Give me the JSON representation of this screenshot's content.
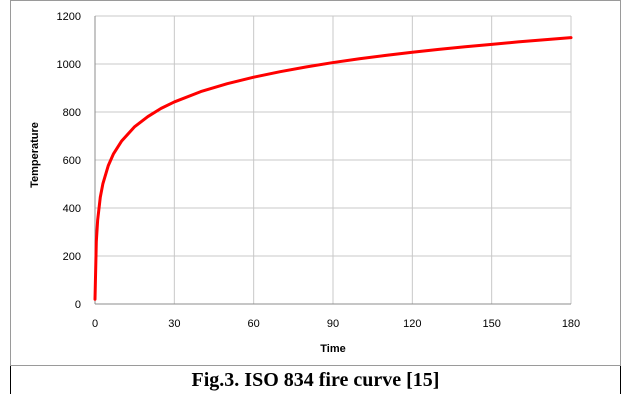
{
  "caption": "Fig.3. ISO 834 fire curve [15]",
  "chart_data": {
    "type": "line",
    "xlabel": "Time",
    "ylabel": "Temperature",
    "xlim": [
      0,
      180
    ],
    "ylim": [
      0,
      1200
    ],
    "x_ticks": [
      "0",
      "30",
      "60",
      "90",
      "120",
      "150",
      "180"
    ],
    "y_ticks": [
      "0",
      "200",
      "400",
      "600",
      "800",
      "1000",
      "1200"
    ],
    "grid": true,
    "legend": "none",
    "series": [
      {
        "color": "#ff0000",
        "x": [
          0,
          0.5,
          1,
          2,
          3,
          5,
          7,
          10,
          15,
          20,
          25,
          30,
          40,
          50,
          60,
          70,
          80,
          90,
          100,
          110,
          120,
          130,
          140,
          150,
          160,
          170,
          180
        ],
        "y": [
          20,
          261,
          349,
          445,
          502,
          576,
          626,
          678,
          739,
          781,
          815,
          842,
          885,
          918,
          945,
          968,
          988,
          1006,
          1022,
          1036,
          1049,
          1061,
          1072,
          1082,
          1092,
          1101,
          1110
        ]
      }
    ]
  }
}
